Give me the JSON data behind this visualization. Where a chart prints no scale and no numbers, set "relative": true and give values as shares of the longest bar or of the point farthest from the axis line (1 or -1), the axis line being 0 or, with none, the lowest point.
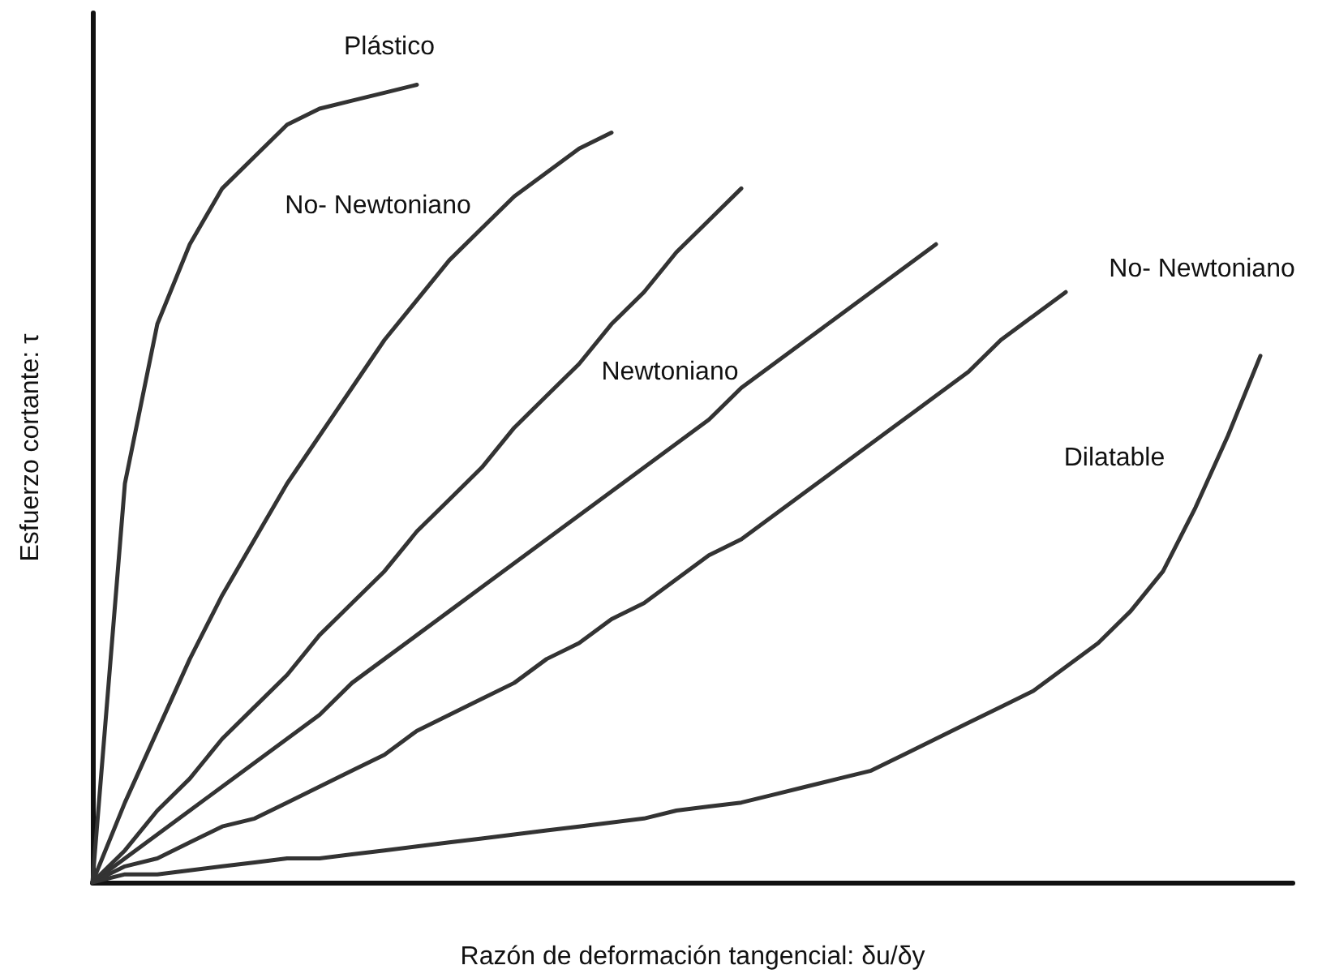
{
  "chart_data": {
    "type": "line",
    "relative": true,
    "xlabel": "Razón de deformación tangencial: δu/δy",
    "ylabel": "Esfuerzo cortante: τ",
    "marker": "none",
    "line_style": "solid",
    "legend": false,
    "grid": false,
    "categories": [
      null,
      null,
      null,
      null,
      null,
      null,
      null,
      null,
      null,
      null,
      null,
      null,
      null,
      null,
      null,
      null,
      null,
      null,
      null,
      null,
      null,
      null,
      null,
      null,
      null,
      null,
      null,
      null,
      null,
      null,
      null,
      null,
      null,
      null,
      null,
      null,
      null,
      null
    ],
    "series": [
      {
        "name": "Plástico",
        "color": "#333333",
        "values": [
          0,
          0.5,
          0.7,
          0.8,
          0.87,
          0.91,
          0.95,
          0.97,
          0.98,
          0.99,
          1.0,
          null,
          null,
          null,
          null,
          null,
          null,
          null,
          null,
          null,
          null,
          null,
          null,
          null,
          null,
          null,
          null,
          null,
          null,
          null,
          null,
          null,
          null,
          null,
          null,
          null,
          null,
          null
        ]
      },
      {
        "name": "No- Newtoniano",
        "color": "#333333",
        "values": [
          0,
          0.1,
          0.19,
          0.28,
          0.36,
          0.43,
          0.5,
          0.56,
          0.62,
          0.68,
          0.73,
          0.78,
          0.82,
          0.86,
          0.89,
          0.92,
          0.94,
          null,
          null,
          null,
          null,
          null,
          null,
          null,
          null,
          null,
          null,
          null,
          null,
          null,
          null,
          null,
          null,
          null,
          null,
          null,
          null,
          null
        ]
      },
      {
        "name": "Newtoniano",
        "color": "#333333",
        "values": [
          0,
          0.04,
          0.09,
          0.13,
          0.18,
          0.22,
          0.26,
          0.31,
          0.35,
          0.39,
          0.44,
          0.48,
          0.52,
          0.57,
          0.61,
          0.65,
          0.7,
          0.74,
          0.79,
          0.83,
          0.87,
          null,
          null,
          null,
          null,
          null,
          null,
          null,
          null,
          null,
          null,
          null,
          null,
          null,
          null,
          null,
          null,
          null
        ]
      },
      {
        "color": "#333333",
        "values": [
          0,
          0.03,
          0.06,
          0.09,
          0.12,
          0.15,
          0.18,
          0.21,
          0.25,
          0.28,
          0.31,
          0.34,
          0.37,
          0.4,
          0.43,
          0.46,
          0.49,
          0.52,
          0.55,
          0.58,
          0.62,
          0.65,
          0.68,
          0.71,
          0.74,
          0.77,
          0.8,
          null,
          null,
          null,
          null,
          null,
          null,
          null,
          null,
          null,
          null,
          null
        ]
      },
      {
        "name": "No- Newtoniano",
        "color": "#333333",
        "values": [
          0,
          0.02,
          0.03,
          0.05,
          0.07,
          0.08,
          0.1,
          0.12,
          0.14,
          0.16,
          0.19,
          0.21,
          0.23,
          0.25,
          0.28,
          0.3,
          0.33,
          0.35,
          0.38,
          0.41,
          0.43,
          0.46,
          0.49,
          0.52,
          0.55,
          0.58,
          0.61,
          0.64,
          0.68,
          0.71,
          0.74,
          null,
          null,
          null,
          null,
          null,
          null,
          null
        ]
      },
      {
        "name": "Dilatable",
        "color": "#333333",
        "values": [
          0,
          0.01,
          0.01,
          0.015,
          0.02,
          0.025,
          0.03,
          0.03,
          0.035,
          0.04,
          0.045,
          0.05,
          0.055,
          0.06,
          0.065,
          0.07,
          0.075,
          0.08,
          0.09,
          0.095,
          0.1,
          0.11,
          0.12,
          0.13,
          0.14,
          0.16,
          0.18,
          0.2,
          0.22,
          0.24,
          0.27,
          0.3,
          0.34,
          0.39,
          0.47,
          0.56,
          0.66,
          null
        ]
      }
    ]
  }
}
